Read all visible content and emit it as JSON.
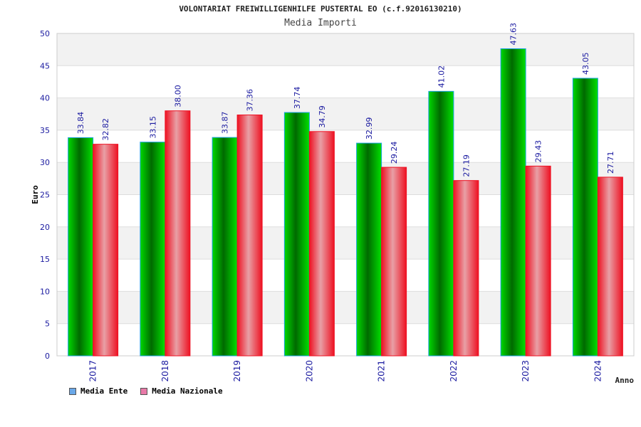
{
  "title": "VOLONTARIAT FREIWILLIGENHILFE PUSTERTAL EO (c.f.92016130210)",
  "subtitle": "Media Importi",
  "chart_data": {
    "type": "bar",
    "categories": [
      "2017",
      "2018",
      "2019",
      "2020",
      "2021",
      "2022",
      "2023",
      "2024"
    ],
    "series": [
      {
        "name": "Media Ente",
        "values": [
          33.84,
          33.15,
          33.87,
          37.74,
          32.99,
          41.02,
          47.63,
          43.05
        ],
        "value_labels": [
          "33.84",
          "33.15",
          "33.87",
          "37.74",
          "32.99",
          "41.02",
          "47.63",
          "43.05"
        ],
        "color": "#00c000",
        "legend_color": "#6aa8e8"
      },
      {
        "name": "Media Nazionale",
        "values": [
          32.82,
          38.0,
          37.36,
          34.79,
          29.24,
          27.19,
          29.43,
          27.71
        ],
        "value_labels": [
          "32.82",
          "38.00",
          "37.36",
          "34.79",
          "29.24",
          "27.19",
          "29.43",
          "27.71"
        ],
        "color": "#ee1122",
        "legend_color": "#e87aa8"
      }
    ],
    "xlabel": "Anno",
    "ylabel": "Euro",
    "ylim": [
      0,
      50
    ],
    "yticks": [
      "0",
      "5",
      "10",
      "15",
      "20",
      "25",
      "30",
      "35",
      "40",
      "45",
      "50"
    ],
    "grid": true,
    "legend_position": "bottom-left"
  }
}
